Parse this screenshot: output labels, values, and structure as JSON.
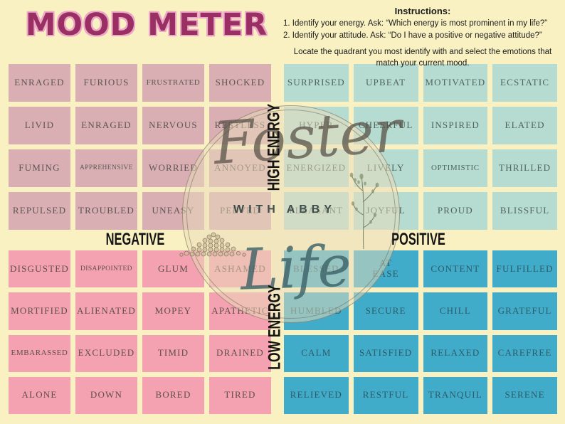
{
  "title": "MOOD METER",
  "instructions": {
    "heading": "Instructions:",
    "steps": [
      "1. Identify your energy. Ask: “Which energy is most prominent in my life?”",
      "2. Identify your attitude. Ask: “Do I have a positive or negative attitude?”"
    ],
    "note": "Locate the quadrant you most identify with and select the emotions that match your current mood."
  },
  "axes": {
    "high": "HIGH ENERGY",
    "low": "LOW ENERGY",
    "negative": "NEGATIVE",
    "positive": "POSITIVE"
  },
  "quadrants": {
    "high_negative": {
      "label": "high energy / negative",
      "color": "#D9AFB4",
      "text_color": "#5E5650",
      "cells": [
        "ENRAGED",
        "FURIOUS",
        "FRUSTRATED",
        "SHOCKED",
        "LIVID",
        "ENRAGED",
        "NERVOUS",
        "RESTLESS",
        "FUMING",
        "APPREHENSIVE",
        "WORRIED",
        "ANNOYED",
        "REPULSED",
        "TROUBLED",
        "UNEASY",
        "PEEVED"
      ]
    },
    "high_positive": {
      "label": "high energy / positive",
      "color": "#B6DCD2",
      "text_color": "#50635E",
      "cells": [
        "SURPRISED",
        "UPBEAT",
        "MOTIVATED",
        "ECSTATIC",
        "HYPER",
        "CHEERFUL",
        "INSPIRED",
        "ELATED",
        "ENERGIZED",
        "LIVELY",
        "OPTIMISTIC",
        "THRILLED",
        "PLEASANT",
        "JOYFUL",
        "PROUD",
        "BLISSFUL"
      ]
    },
    "low_negative": {
      "label": "low energy / negative",
      "color": "#F4A1B1",
      "text_color": "#5E5148",
      "cells": [
        "DISGUSTED",
        "DISAPPOINTED",
        "GLUM",
        "ASHAMED",
        "MORTIFIED",
        "ALIENATED",
        "MOPEY",
        "APATHETIC",
        "EMBARASSED",
        "EXCLUDED",
        "TIMID",
        "DRAINED",
        "ALONE",
        "DOWN",
        "BORED",
        "TIRED"
      ]
    },
    "low_positive": {
      "label": "low energy / positive",
      "color": "#41ACC9",
      "text_color": "#2E5B68",
      "cells": [
        "BLESSED",
        "AT\nEASE",
        "CONTENT",
        "FULFILLED",
        "HUMBLED",
        "SECURE",
        "CHILL",
        "GRATEFUL",
        "CALM",
        "SATISFIED",
        "RELAXED",
        "CAREFREE",
        "RELIEVED",
        "RESTFUL",
        "TRANQUIL",
        "SERENE"
      ]
    }
  },
  "watermark": {
    "line1": "Foster",
    "line2": "WITH ABBY",
    "line3": "Life"
  },
  "colors": {
    "bg": "#FAF1C2",
    "title": "#9A2F63",
    "title_halo": "#ECA9C7",
    "axis": "#141414"
  }
}
